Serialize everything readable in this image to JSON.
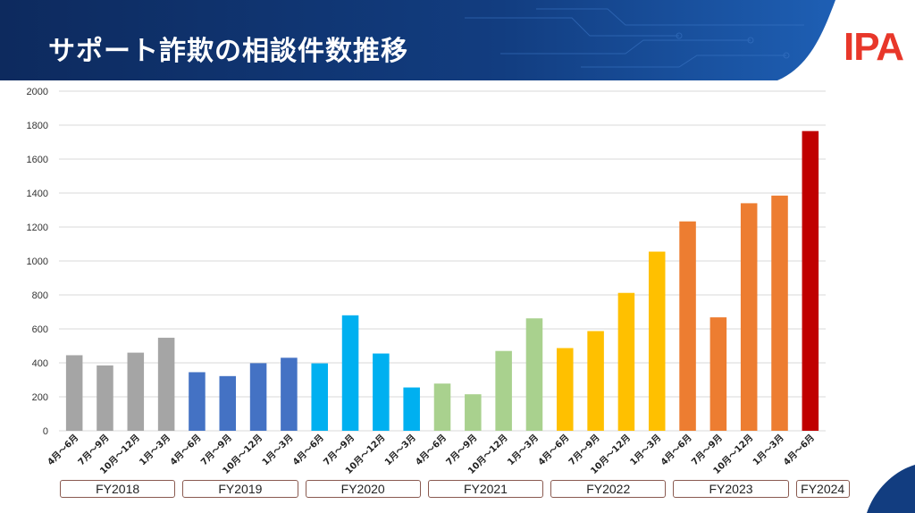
{
  "header": {
    "title": "サポート詐欺の相談件数推移",
    "logo": "IPA",
    "colors": {
      "banner_dark": "#0d2a5e",
      "banner_light": "#1e5fb4",
      "logo": "#e8372a"
    }
  },
  "chart_data": {
    "type": "bar",
    "title": "サポート詐欺の相談件数推移",
    "ylim": [
      0,
      2000
    ],
    "yticks": [
      0,
      200,
      400,
      600,
      800,
      1000,
      1200,
      1400,
      1600,
      1800,
      2000
    ],
    "grid": true,
    "categories": [
      "4月～6月",
      "7月～9月",
      "10月～12月",
      "1月～3月",
      "4月～6月",
      "7月～9月",
      "10月～12月",
      "1月～3月",
      "4月～6月",
      "7月～9月",
      "10月～12月",
      "1月～3月",
      "4月～6月",
      "7月～9月",
      "10月～12月",
      "1月～3月",
      "4月～6月",
      "7月～9月",
      "10月～12月",
      "1月～3月",
      "4月～6月",
      "7月～9月",
      "10月～12月",
      "1月～3月",
      "4月～6月"
    ],
    "values": [
      445,
      385,
      460,
      548,
      345,
      322,
      398,
      430,
      397,
      680,
      455,
      255,
      278,
      215,
      470,
      662,
      487,
      587,
      812,
      1055,
      1233,
      668,
      1340,
      1385,
      1765
    ],
    "groups": [
      {
        "label": "FY2018",
        "count": 4,
        "color": "#a5a5a5"
      },
      {
        "label": "FY2019",
        "count": 4,
        "color": "#4472c4"
      },
      {
        "label": "FY2020",
        "count": 4,
        "color": "#00b0f0"
      },
      {
        "label": "FY2021",
        "count": 4,
        "color": "#a9d18e"
      },
      {
        "label": "FY2022",
        "count": 4,
        "color": "#ffc000"
      },
      {
        "label": "FY2023",
        "count": 4,
        "color": "#ed7d31"
      },
      {
        "label": "FY2024",
        "count": 1,
        "color": "#c00000"
      }
    ]
  }
}
